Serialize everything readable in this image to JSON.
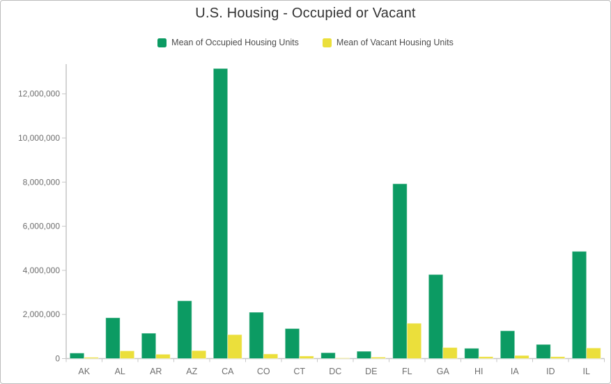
{
  "title": "U.S. Housing - Occupied or Vacant",
  "legend": {
    "items": [
      {
        "label": "Mean of Occupied Housing Units",
        "color": "#0c9b63",
        "series": "occupied"
      },
      {
        "label": "Mean of Vacant Housing Units",
        "color": "#ebdf3b",
        "series": "vacant"
      }
    ]
  },
  "chart_data": {
    "type": "bar",
    "title": "U.S. Housing - Occupied or Vacant",
    "xlabel": "",
    "ylabel": "",
    "grid": false,
    "legend_position": "top",
    "categories": [
      "AK",
      "AL",
      "AR",
      "AZ",
      "CA",
      "CO",
      "CT",
      "DC",
      "DE",
      "FL",
      "GA",
      "HI",
      "IA",
      "ID",
      "IL"
    ],
    "series": [
      {
        "name": "Mean of Occupied Housing Units",
        "color": "#0c9b63",
        "values": [
          250000,
          1850000,
          1150000,
          2620000,
          13150000,
          2100000,
          1360000,
          265000,
          330000,
          7925000,
          3810000,
          465000,
          1260000,
          640000,
          4860000
        ]
      },
      {
        "name": "Mean of Vacant Housing Units",
        "color": "#ebdf3b",
        "values": [
          55000,
          350000,
          195000,
          360000,
          1085000,
          210000,
          115000,
          30000,
          65000,
          1600000,
          500000,
          85000,
          140000,
          85000,
          480000
        ]
      }
    ],
    "ylim": [
      0,
      13360000
    ],
    "yticks": [
      0,
      2000000,
      4000000,
      6000000,
      8000000,
      10000000,
      12000000
    ],
    "ytick_labels": [
      "0",
      "2,000,000",
      "4,000,000",
      "6,000,000",
      "8,000,000",
      "10,000,000",
      "12,000,000"
    ]
  }
}
